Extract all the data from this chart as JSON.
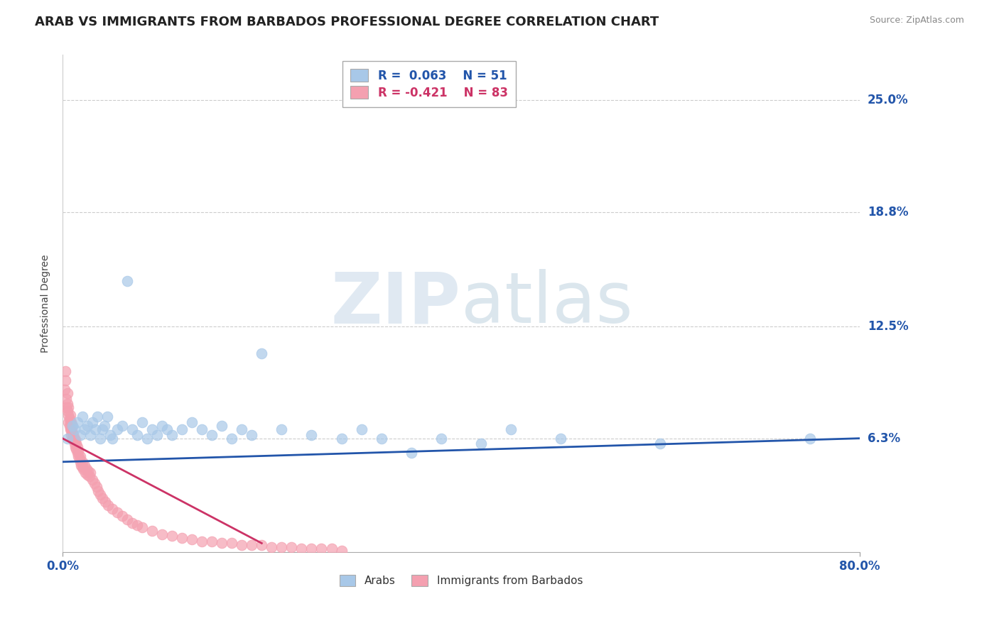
{
  "title": "ARAB VS IMMIGRANTS FROM BARBADOS PROFESSIONAL DEGREE CORRELATION CHART",
  "source": "Source: ZipAtlas.com",
  "ylabel": "Professional Degree",
  "ytick_labels": [
    "6.3%",
    "12.5%",
    "18.8%",
    "25.0%"
  ],
  "ytick_values": [
    0.063,
    0.125,
    0.188,
    0.25
  ],
  "xlim": [
    0.0,
    0.8
  ],
  "ylim": [
    0.0,
    0.275
  ],
  "legend_blue_R": "R =  0.063",
  "legend_blue_N": "N = 51",
  "legend_pink_R": "R = -0.421",
  "legend_pink_N": "N = 83",
  "legend_label_blue": "Arabs",
  "legend_label_pink": "Immigrants from Barbados",
  "blue_color": "#A8C8E8",
  "pink_color": "#F4A0B0",
  "blue_line_color": "#2255AA",
  "pink_line_color": "#CC3366",
  "blue_scatter_x": [
    0.005,
    0.01,
    0.012,
    0.015,
    0.018,
    0.02,
    0.022,
    0.025,
    0.028,
    0.03,
    0.033,
    0.035,
    0.038,
    0.04,
    0.042,
    0.045,
    0.048,
    0.05,
    0.055,
    0.06,
    0.065,
    0.07,
    0.075,
    0.08,
    0.085,
    0.09,
    0.095,
    0.1,
    0.105,
    0.11,
    0.12,
    0.13,
    0.14,
    0.15,
    0.16,
    0.17,
    0.18,
    0.19,
    0.2,
    0.22,
    0.25,
    0.28,
    0.3,
    0.32,
    0.35,
    0.38,
    0.42,
    0.45,
    0.5,
    0.6,
    0.75
  ],
  "blue_scatter_y": [
    0.063,
    0.07,
    0.068,
    0.072,
    0.065,
    0.075,
    0.068,
    0.07,
    0.065,
    0.072,
    0.068,
    0.075,
    0.063,
    0.068,
    0.07,
    0.075,
    0.065,
    0.063,
    0.068,
    0.07,
    0.15,
    0.068,
    0.065,
    0.072,
    0.063,
    0.068,
    0.065,
    0.07,
    0.068,
    0.065,
    0.068,
    0.072,
    0.068,
    0.065,
    0.07,
    0.063,
    0.068,
    0.065,
    0.11,
    0.068,
    0.065,
    0.063,
    0.068,
    0.063,
    0.055,
    0.063,
    0.06,
    0.068,
    0.063,
    0.06,
    0.063
  ],
  "pink_scatter_x": [
    0.002,
    0.003,
    0.003,
    0.004,
    0.004,
    0.005,
    0.005,
    0.005,
    0.006,
    0.006,
    0.006,
    0.007,
    0.007,
    0.008,
    0.008,
    0.008,
    0.009,
    0.009,
    0.009,
    0.01,
    0.01,
    0.01,
    0.011,
    0.011,
    0.012,
    0.012,
    0.013,
    0.013,
    0.014,
    0.014,
    0.015,
    0.015,
    0.016,
    0.016,
    0.017,
    0.018,
    0.018,
    0.019,
    0.02,
    0.02,
    0.021,
    0.022,
    0.023,
    0.024,
    0.025,
    0.026,
    0.027,
    0.028,
    0.03,
    0.032,
    0.034,
    0.036,
    0.038,
    0.04,
    0.043,
    0.046,
    0.05,
    0.055,
    0.06,
    0.065,
    0.07,
    0.075,
    0.08,
    0.09,
    0.1,
    0.11,
    0.12,
    0.13,
    0.14,
    0.15,
    0.16,
    0.17,
    0.18,
    0.19,
    0.2,
    0.21,
    0.22,
    0.23,
    0.24,
    0.25,
    0.26,
    0.27,
    0.28
  ],
  "pink_scatter_y": [
    0.09,
    0.095,
    0.1,
    0.08,
    0.085,
    0.078,
    0.082,
    0.088,
    0.072,
    0.076,
    0.08,
    0.07,
    0.074,
    0.068,
    0.072,
    0.076,
    0.065,
    0.068,
    0.072,
    0.063,
    0.066,
    0.07,
    0.062,
    0.065,
    0.06,
    0.063,
    0.058,
    0.062,
    0.057,
    0.06,
    0.055,
    0.058,
    0.053,
    0.056,
    0.052,
    0.05,
    0.053,
    0.048,
    0.047,
    0.05,
    0.046,
    0.048,
    0.044,
    0.046,
    0.043,
    0.045,
    0.042,
    0.044,
    0.04,
    0.038,
    0.036,
    0.034,
    0.032,
    0.03,
    0.028,
    0.026,
    0.024,
    0.022,
    0.02,
    0.018,
    0.016,
    0.015,
    0.014,
    0.012,
    0.01,
    0.009,
    0.008,
    0.007,
    0.006,
    0.006,
    0.005,
    0.005,
    0.004,
    0.004,
    0.004,
    0.003,
    0.003,
    0.003,
    0.002,
    0.002,
    0.002,
    0.002,
    0.001
  ],
  "blue_trend_x": [
    0.0,
    0.8
  ],
  "blue_trend_y": [
    0.05,
    0.063
  ],
  "pink_trend_x": [
    0.0,
    0.2
  ],
  "pink_trend_y": [
    0.063,
    0.005
  ],
  "background_color": "#FFFFFF",
  "plot_bg_color": "#FFFFFF",
  "grid_color": "#CCCCCC",
  "title_fontsize": 13,
  "axis_label_fontsize": 10
}
